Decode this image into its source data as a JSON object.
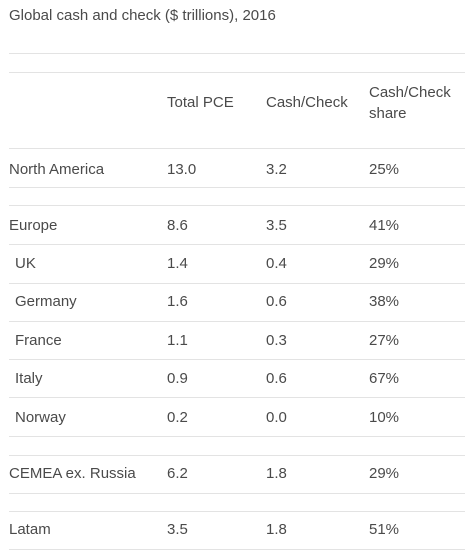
{
  "title": "Global cash and check ($ trillions), 2016",
  "columns": {
    "pce": "Total PCE",
    "cash": "Cash/Check",
    "share": "Cash/Check share"
  },
  "rows": [
    {
      "region": "North America",
      "pce": "13.0",
      "cash": "3.2",
      "share": "25%"
    },
    {
      "region": "Europe",
      "pce": "8.6",
      "cash": "3.5",
      "share": "41%"
    },
    {
      "region": "UK",
      "pce": "1.4",
      "cash": "0.4",
      "share": "29%"
    },
    {
      "region": "Germany",
      "pce": "1.6",
      "cash": "0.6",
      "share": "38%"
    },
    {
      "region": "France",
      "pce": "1.1",
      "cash": "0.3",
      "share": "27%"
    },
    {
      "region": "Italy",
      "pce": "0.9",
      "cash": "0.6",
      "share": "67%"
    },
    {
      "region": "Norway",
      "pce": "0.2",
      "cash": "0.0",
      "share": "10%"
    },
    {
      "region": "CEMEA ex. Russia",
      "pce": "6.2",
      "cash": "1.8",
      "share": "29%"
    },
    {
      "region": "Latam",
      "pce": "3.5",
      "cash": "1.8",
      "share": "51%"
    }
  ]
}
